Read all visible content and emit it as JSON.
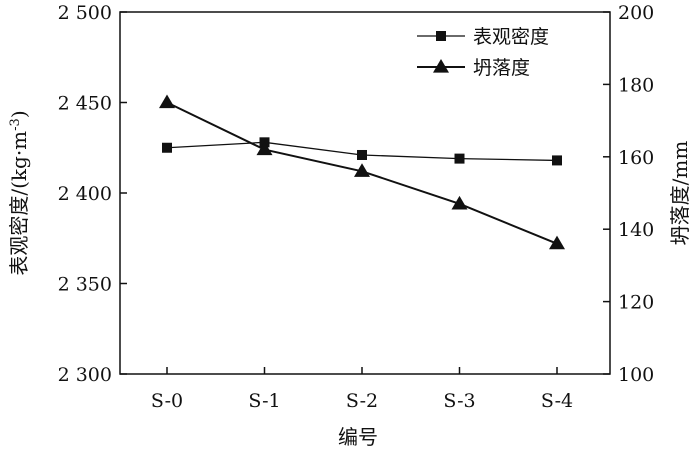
{
  "chart_data": {
    "type": "line",
    "categories": [
      "S-0",
      "S-1",
      "S-2",
      "S-3",
      "S-4"
    ],
    "xlabel": "编号",
    "y_left": {
      "label": "表观密度/(kg·m⁻³)",
      "label_main": "表观密度/(kg·m",
      "label_sup": "-3",
      "label_close": ")",
      "lim": [
        2300,
        2500
      ],
      "ticks": [
        2300,
        2350,
        2400,
        2450,
        2500
      ],
      "tick_labels": [
        "2 300",
        "2 350",
        "2 400",
        "2 450",
        "2 500"
      ]
    },
    "y_right": {
      "label": "坍落度/mm",
      "lim": [
        100,
        200
      ],
      "ticks": [
        100,
        120,
        140,
        160,
        180,
        200
      ],
      "tick_labels": [
        "100",
        "120",
        "140",
        "160",
        "180",
        "200"
      ]
    },
    "series": [
      {
        "name": "表观密度",
        "axis": "left",
        "marker": "square",
        "values": [
          2425,
          2428,
          2421,
          2419,
          2418
        ]
      },
      {
        "name": "坍落度",
        "axis": "right",
        "marker": "triangle",
        "values": [
          175,
          162,
          156,
          147,
          136
        ]
      }
    ],
    "legend_position": "top-right",
    "grid": false
  }
}
